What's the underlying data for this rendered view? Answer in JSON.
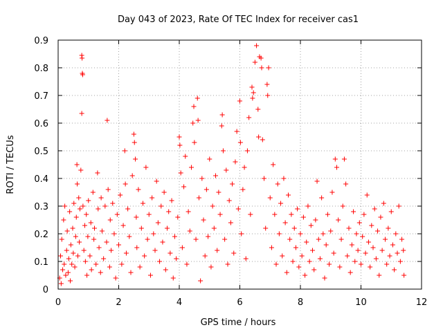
{
  "chart_data": {
    "type": "scatter",
    "title": "Day 043 of 2023, Rate Of TEC Index for receiver cas1",
    "xlabel": "GPS time / hours",
    "ylabel": "ROTI / TECUs",
    "xlim": [
      0,
      12
    ],
    "ylim": [
      0,
      0.9
    ],
    "x_ticks": [
      "0",
      "2",
      "4",
      "6",
      "8",
      "10",
      "12"
    ],
    "y_ticks": [
      "0",
      "0.1",
      "0.2",
      "0.3",
      "0.4",
      "0.5",
      "0.6",
      "0.7",
      "0.8",
      "0.9"
    ],
    "grid": true,
    "marker": "plus",
    "color": "#ff0000",
    "series": [
      {
        "points": [
          [
            0.05,
            0.04
          ],
          [
            0.08,
            0.12
          ],
          [
            0.1,
            0.02
          ],
          [
            0.12,
            0.18
          ],
          [
            0.15,
            0.07
          ],
          [
            0.18,
            0.25
          ],
          [
            0.2,
            0.09
          ],
          [
            0.22,
            0.3
          ],
          [
            0.25,
            0.05
          ],
          [
            0.28,
            0.14
          ],
          [
            0.3,
            0.21
          ],
          [
            0.33,
            0.06
          ],
          [
            0.35,
            0.11
          ],
          [
            0.38,
            0.28
          ],
          [
            0.4,
            0.03
          ],
          [
            0.42,
            0.16
          ],
          [
            0.45,
            0.09
          ],
          [
            0.48,
            0.22
          ],
          [
            0.5,
            0.13
          ],
          [
            0.52,
            0.31
          ],
          [
            0.55,
            0.08
          ],
          [
            0.58,
            0.19
          ],
          [
            0.6,
            0.26
          ],
          [
            0.62,
            0.45
          ],
          [
            0.63,
            0.38
          ],
          [
            0.65,
            0.12
          ],
          [
            0.68,
            0.33
          ],
          [
            0.7,
            0.17
          ],
          [
            0.72,
            0.29
          ],
          [
            0.75,
            0.43
          ],
          [
            0.78,
            0.845
          ],
          [
            0.79,
            0.835
          ],
          [
            0.8,
            0.78
          ],
          [
            0.81,
            0.775
          ],
          [
            0.78,
            0.635
          ],
          [
            0.82,
            0.3
          ],
          [
            0.85,
            0.14
          ],
          [
            0.88,
            0.23
          ],
          [
            0.9,
            0.1
          ],
          [
            0.93,
            0.27
          ],
          [
            0.95,
            0.05
          ],
          [
            0.98,
            0.19
          ],
          [
            1.0,
            0.32
          ],
          [
            1.05,
            0.12
          ],
          [
            1.08,
            0.24
          ],
          [
            1.1,
            0.07
          ],
          [
            1.15,
            0.35
          ],
          [
            1.18,
            0.18
          ],
          [
            1.2,
            0.22
          ],
          [
            1.25,
            0.09
          ],
          [
            1.3,
            0.42
          ],
          [
            1.32,
            0.29
          ],
          [
            1.35,
            0.15
          ],
          [
            1.4,
            0.06
          ],
          [
            1.42,
            0.33
          ],
          [
            1.45,
            0.21
          ],
          [
            1.5,
            0.11
          ],
          [
            1.55,
            0.3
          ],
          [
            1.6,
            0.17
          ],
          [
            1.62,
            0.61
          ],
          [
            1.65,
            0.36
          ],
          [
            1.7,
            0.08
          ],
          [
            1.72,
            0.25
          ],
          [
            1.75,
            0.14
          ],
          [
            1.8,
            0.31
          ],
          [
            1.85,
            0.2
          ],
          [
            1.9,
            0.04
          ],
          [
            1.95,
            0.27
          ],
          [
            2.0,
            0.16
          ],
          [
            2.05,
            0.34
          ],
          [
            2.1,
            0.09
          ],
          [
            2.15,
            0.23
          ],
          [
            2.2,
            0.5
          ],
          [
            2.22,
            0.38
          ],
          [
            2.25,
            0.13
          ],
          [
            2.3,
            0.29
          ],
          [
            2.35,
            0.19
          ],
          [
            2.4,
            0.06
          ],
          [
            2.45,
            0.41
          ],
          [
            2.5,
            0.56
          ],
          [
            2.52,
            0.53
          ],
          [
            2.55,
            0.47
          ],
          [
            2.58,
            0.26
          ],
          [
            2.6,
            0.15
          ],
          [
            2.65,
            0.36
          ],
          [
            2.7,
            0.08
          ],
          [
            2.75,
            0.22
          ],
          [
            2.8,
            0.31
          ],
          [
            2.85,
            0.12
          ],
          [
            2.9,
            0.44
          ],
          [
            2.95,
            0.18
          ],
          [
            3.0,
            0.27
          ],
          [
            3.05,
            0.05
          ],
          [
            3.1,
            0.33
          ],
          [
            3.15,
            0.2
          ],
          [
            3.2,
            0.14
          ],
          [
            3.25,
            0.39
          ],
          [
            3.3,
            0.24
          ],
          [
            3.35,
            0.1
          ],
          [
            3.4,
            0.3
          ],
          [
            3.45,
            0.17
          ],
          [
            3.5,
            0.35
          ],
          [
            3.55,
            0.07
          ],
          [
            3.6,
            0.22
          ],
          [
            3.65,
            0.28
          ],
          [
            3.7,
            0.13
          ],
          [
            3.75,
            0.32
          ],
          [
            3.8,
            0.04
          ],
          [
            3.85,
            0.19
          ],
          [
            3.9,
            0.11
          ],
          [
            3.95,
            0.26
          ],
          [
            4.0,
            0.55
          ],
          [
            4.02,
            0.52
          ],
          [
            4.05,
            0.42
          ],
          [
            4.1,
            0.15
          ],
          [
            4.15,
            0.37
          ],
          [
            4.2,
            0.48
          ],
          [
            4.25,
            0.09
          ],
          [
            4.3,
            0.28
          ],
          [
            4.35,
            0.21
          ],
          [
            4.4,
            0.44
          ],
          [
            4.45,
            0.6
          ],
          [
            4.48,
            0.66
          ],
          [
            4.5,
            0.53
          ],
          [
            4.55,
            0.18
          ],
          [
            4.6,
            0.69
          ],
          [
            4.62,
            0.61
          ],
          [
            4.65,
            0.33
          ],
          [
            4.7,
            0.03
          ],
          [
            4.75,
            0.4
          ],
          [
            4.8,
            0.25
          ],
          [
            4.85,
            0.12
          ],
          [
            4.9,
            0.36
          ],
          [
            4.95,
            0.19
          ],
          [
            5.0,
            0.47
          ],
          [
            5.05,
            0.08
          ],
          [
            5.1,
            0.3
          ],
          [
            5.15,
            0.22
          ],
          [
            5.2,
            0.41
          ],
          [
            5.25,
            0.14
          ],
          [
            5.3,
            0.35
          ],
          [
            5.35,
            0.27
          ],
          [
            5.4,
            0.59
          ],
          [
            5.42,
            0.63
          ],
          [
            5.45,
            0.5
          ],
          [
            5.5,
            0.18
          ],
          [
            5.55,
            0.43
          ],
          [
            5.6,
            0.09
          ],
          [
            5.65,
            0.32
          ],
          [
            5.7,
            0.24
          ],
          [
            5.75,
            0.38
          ],
          [
            5.8,
            0.13
          ],
          [
            5.85,
            0.46
          ],
          [
            5.9,
            0.57
          ],
          [
            5.95,
            0.29
          ],
          [
            6.0,
            0.68
          ],
          [
            6.02,
            0.53
          ],
          [
            6.05,
            0.2
          ],
          [
            6.1,
            0.36
          ],
          [
            6.15,
            0.44
          ],
          [
            6.2,
            0.11
          ],
          [
            6.25,
            0.5
          ],
          [
            6.3,
            0.62
          ],
          [
            6.35,
            0.27
          ],
          [
            6.4,
            0.73
          ],
          [
            6.42,
            0.69
          ],
          [
            6.45,
            0.71
          ],
          [
            6.5,
            0.82
          ],
          [
            6.55,
            0.88
          ],
          [
            6.6,
            0.65
          ],
          [
            6.62,
            0.55
          ],
          [
            6.65,
            0.84
          ],
          [
            6.7,
            0.835
          ],
          [
            6.72,
            0.8
          ],
          [
            6.75,
            0.54
          ],
          [
            6.8,
            0.4
          ],
          [
            6.85,
            0.22
          ],
          [
            6.9,
            0.74
          ],
          [
            6.92,
            0.7
          ],
          [
            6.95,
            0.8
          ],
          [
            7.0,
            0.33
          ],
          [
            7.05,
            0.15
          ],
          [
            7.1,
            0.45
          ],
          [
            7.15,
            0.27
          ],
          [
            7.2,
            0.09
          ],
          [
            7.25,
            0.38
          ],
          [
            7.3,
            0.2
          ],
          [
            7.35,
            0.31
          ],
          [
            7.4,
            0.12
          ],
          [
            7.45,
            0.4
          ],
          [
            7.5,
            0.24
          ],
          [
            7.55,
            0.06
          ],
          [
            7.6,
            0.34
          ],
          [
            7.65,
            0.18
          ],
          [
            7.7,
            0.27
          ],
          [
            7.75,
            0.1
          ],
          [
            7.8,
            0.22
          ],
          [
            7.85,
            0.15
          ],
          [
            7.9,
            0.29
          ],
          [
            7.95,
            0.08
          ],
          [
            8.0,
            0.2
          ],
          [
            8.05,
            0.12
          ],
          [
            8.1,
            0.26
          ],
          [
            8.15,
            0.05
          ],
          [
            8.2,
            0.17
          ],
          [
            8.25,
            0.3
          ],
          [
            8.3,
            0.1
          ],
          [
            8.35,
            0.23
          ],
          [
            8.4,
            0.14
          ],
          [
            8.45,
            0.07
          ],
          [
            8.5,
            0.25
          ],
          [
            8.55,
            0.39
          ],
          [
            8.6,
            0.18
          ],
          [
            8.65,
            0.11
          ],
          [
            8.7,
            0.33
          ],
          [
            8.75,
            0.2
          ],
          [
            8.8,
            0.04
          ],
          [
            8.85,
            0.16
          ],
          [
            8.9,
            0.27
          ],
          [
            8.95,
            0.09
          ],
          [
            9.0,
            0.21
          ],
          [
            9.05,
            0.35
          ],
          [
            9.1,
            0.13
          ],
          [
            9.15,
            0.47
          ],
          [
            9.2,
            0.44
          ],
          [
            9.25,
            0.25
          ],
          [
            9.3,
            0.08
          ],
          [
            9.35,
            0.18
          ],
          [
            9.4,
            0.3
          ],
          [
            9.45,
            0.47
          ],
          [
            9.5,
            0.38
          ],
          [
            9.55,
            0.12
          ],
          [
            9.6,
            0.22
          ],
          [
            9.65,
            0.06
          ],
          [
            9.7,
            0.16
          ],
          [
            9.75,
            0.28
          ],
          [
            9.8,
            0.1
          ],
          [
            9.85,
            0.2
          ],
          [
            9.9,
            0.14
          ],
          [
            9.95,
            0.24
          ],
          [
            10.0,
            0.09
          ],
          [
            10.05,
            0.19
          ],
          [
            10.1,
            0.27
          ],
          [
            10.15,
            0.13
          ],
          [
            10.2,
            0.34
          ],
          [
            10.25,
            0.17
          ],
          [
            10.3,
            0.08
          ],
          [
            10.35,
            0.23
          ],
          [
            10.4,
            0.15
          ],
          [
            10.45,
            0.29
          ],
          [
            10.5,
            0.11
          ],
          [
            10.55,
            0.21
          ],
          [
            10.6,
            0.05
          ],
          [
            10.65,
            0.26
          ],
          [
            10.7,
            0.14
          ],
          [
            10.75,
            0.31
          ],
          [
            10.8,
            0.18
          ],
          [
            10.85,
            0.09
          ],
          [
            10.9,
            0.22
          ],
          [
            10.95,
            0.12
          ],
          [
            11.0,
            0.28
          ],
          [
            11.05,
            0.16
          ],
          [
            11.1,
            0.07
          ],
          [
            11.15,
            0.2
          ],
          [
            11.2,
            0.13
          ],
          [
            11.25,
            0.3
          ],
          [
            11.3,
            0.1
          ],
          [
            11.35,
            0.18
          ],
          [
            11.4,
            0.14
          ],
          [
            11.42,
            0.05
          ]
        ]
      }
    ]
  }
}
